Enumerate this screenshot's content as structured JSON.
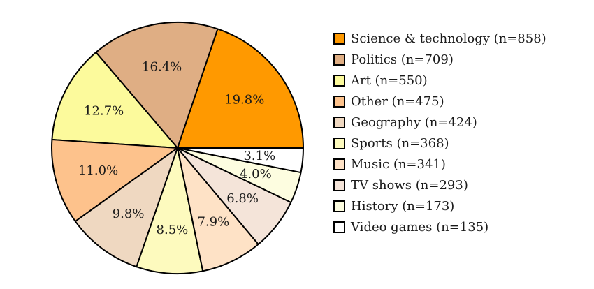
{
  "chart_data": {
    "type": "pie",
    "title": "",
    "start_angle_deg": 0,
    "direction": "counterclockwise",
    "legend_position": "right",
    "series": [
      {
        "label": "Science & technology (n=858)",
        "pct_label": "19.8%",
        "value": 858,
        "percent": 19.8,
        "color": "#ff9900"
      },
      {
        "label": "Politics (n=709)",
        "pct_label": "16.4%",
        "value": 709,
        "percent": 16.4,
        "color": "#dfae84"
      },
      {
        "label": "Art (n=550)",
        "pct_label": "12.7%",
        "value": 550,
        "percent": 12.7,
        "color": "#fcfa9c"
      },
      {
        "label": "Other (n=475)",
        "pct_label": "11.0%",
        "value": 475,
        "percent": 11.0,
        "color": "#fdc28c"
      },
      {
        "label": "Geography (n=424)",
        "pct_label": "9.8%",
        "value": 424,
        "percent": 9.8,
        "color": "#efd8c1"
      },
      {
        "label": "Sports (n=368)",
        "pct_label": "8.5%",
        "value": 368,
        "percent": 8.5,
        "color": "#fdfabe"
      },
      {
        "label": "Music (n=341)",
        "pct_label": "7.9%",
        "value": 341,
        "percent": 7.9,
        "color": "#fee2c6"
      },
      {
        "label": "TV shows (n=293)",
        "pct_label": "6.8%",
        "value": 293,
        "percent": 6.8,
        "color": "#f4e4d9"
      },
      {
        "label": "History (n=173)",
        "pct_label": "4.0%",
        "value": 173,
        "percent": 4.0,
        "color": "#fdfde0"
      },
      {
        "label": "Video games (n=135)",
        "pct_label": "3.1%",
        "value": 135,
        "percent": 3.1,
        "color": "#ffffff"
      }
    ]
  }
}
